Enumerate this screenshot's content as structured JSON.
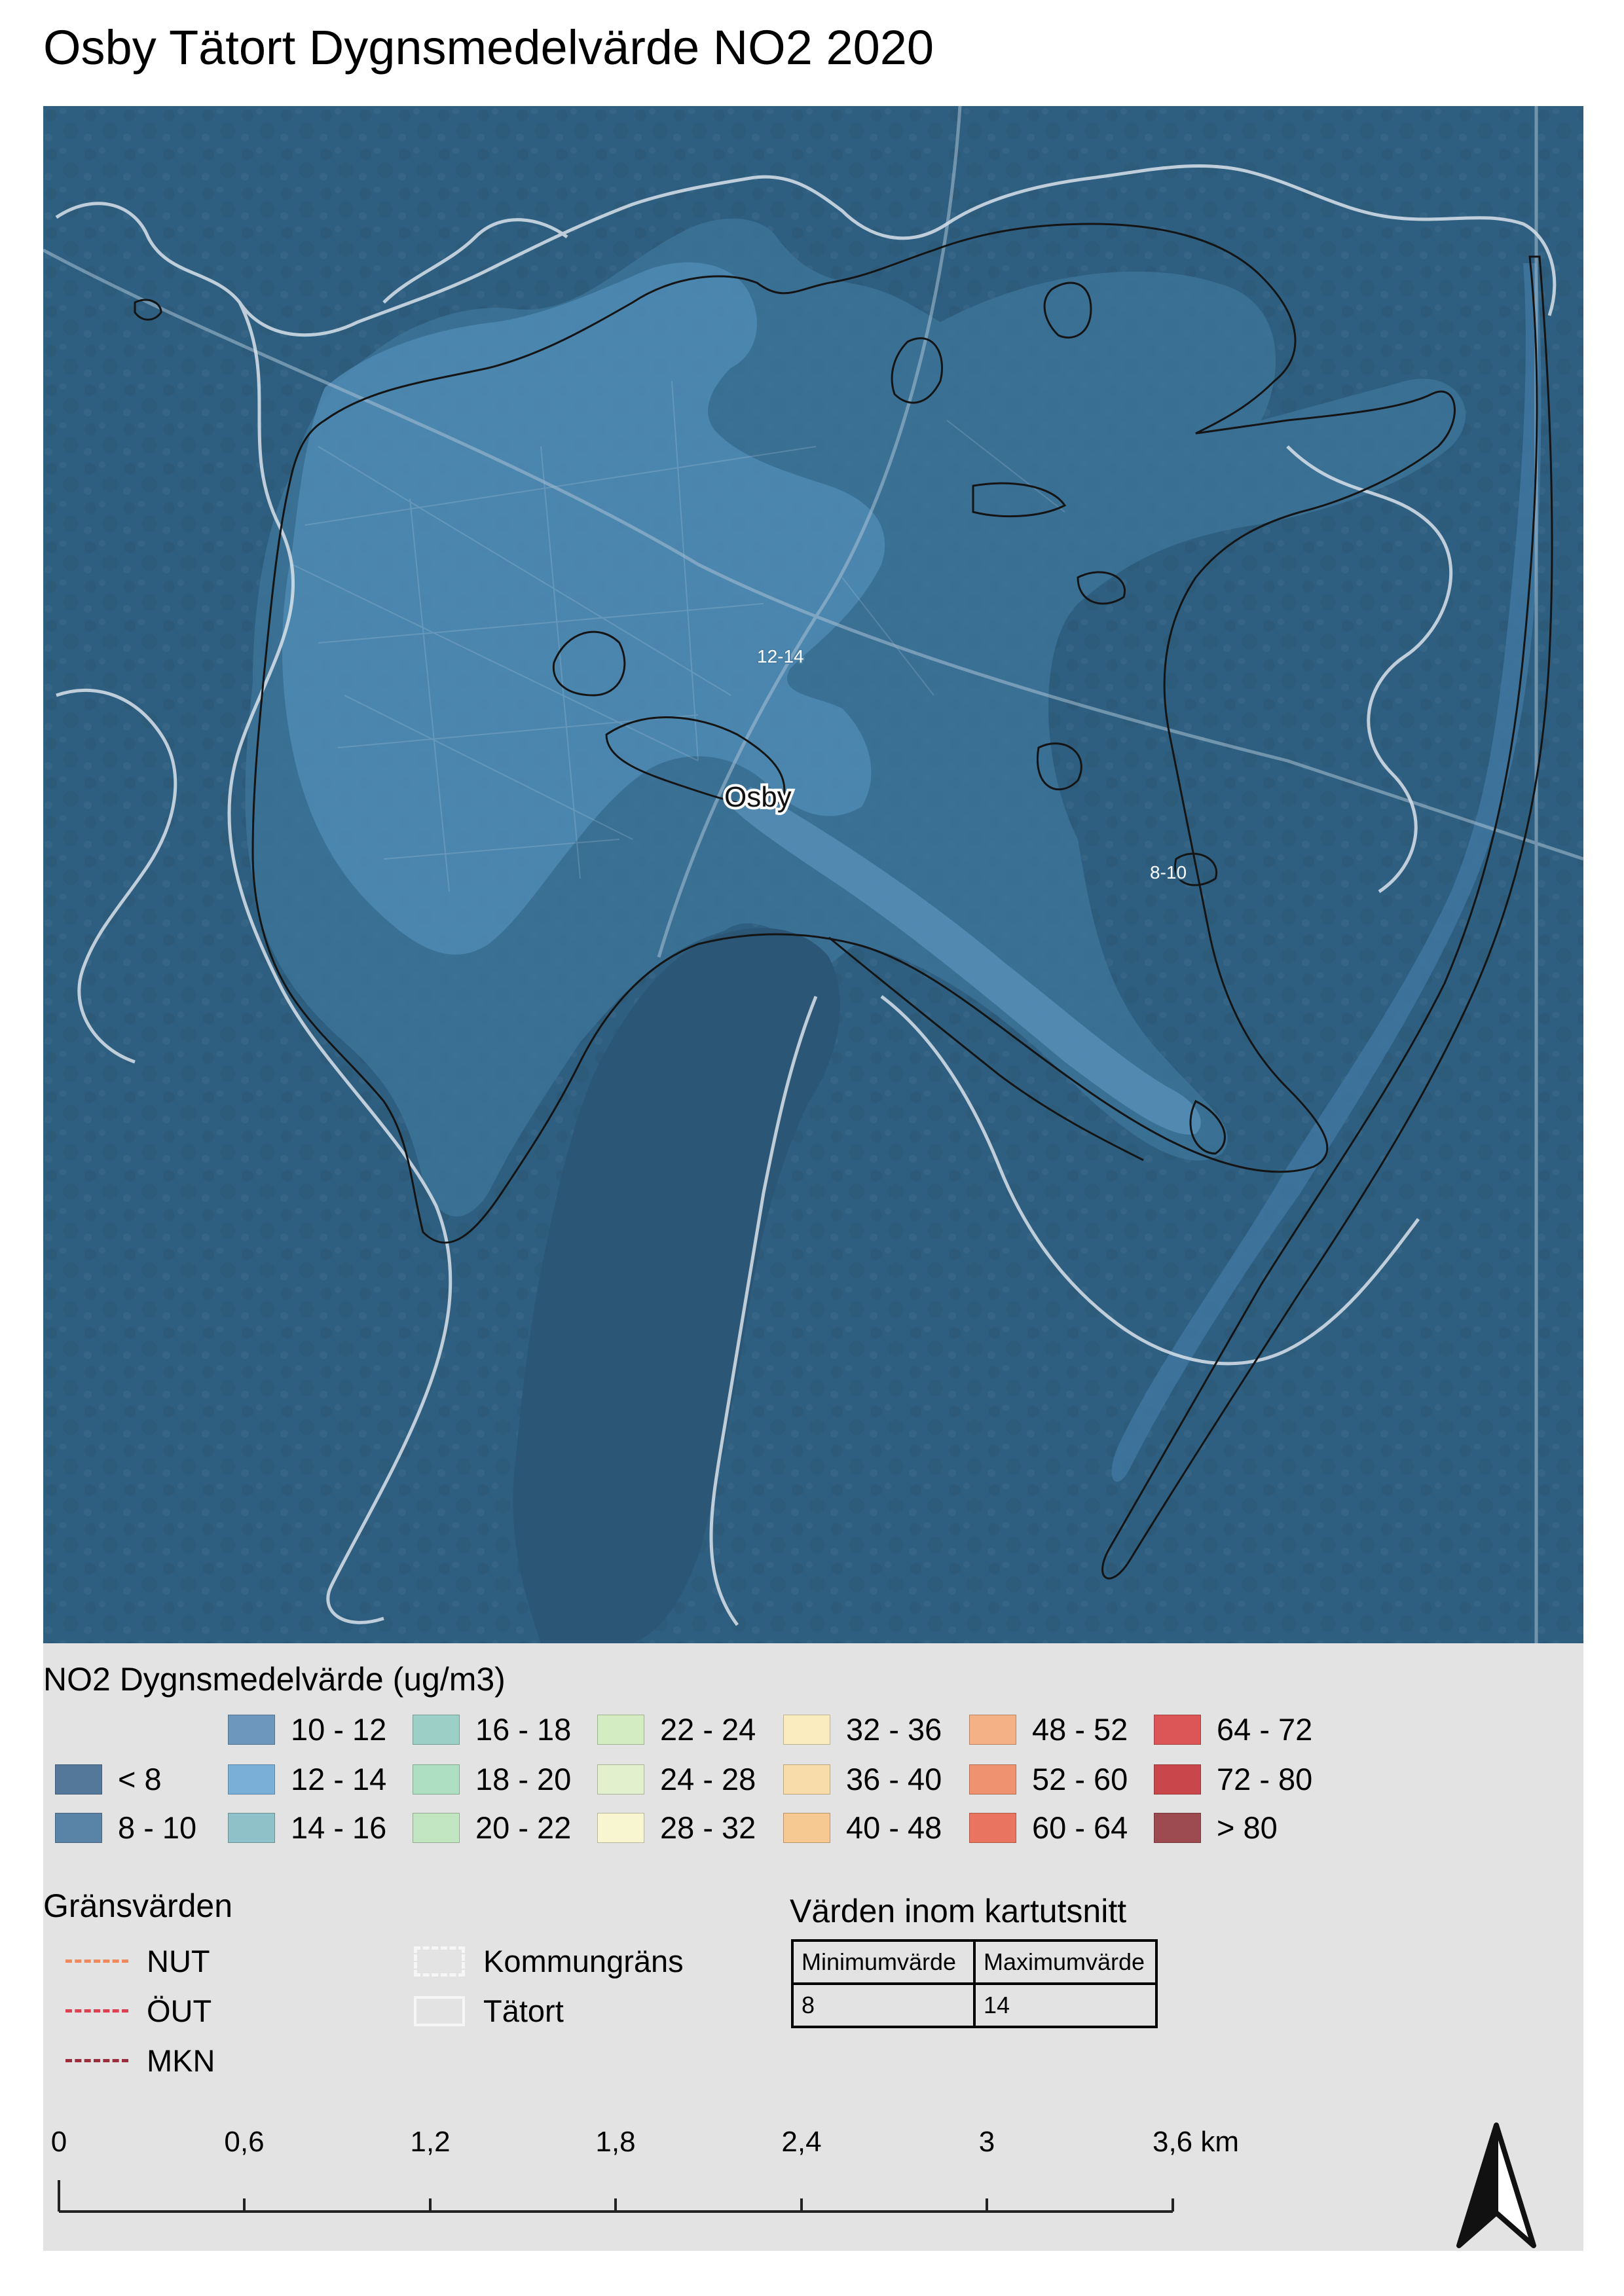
{
  "title": "Osby Tätort Dygnsmedelvärde NO2 2020",
  "map": {
    "labels": {
      "town": "Osby",
      "zone_a": "12-14",
      "zone_b": "8-10"
    },
    "colors": {
      "background": "#2f5f80",
      "band_8_10": "#3a6d92",
      "band_12_14": "#6a9dc6",
      "lake": "#2c5877",
      "tatort_outline": "#d8e2ea",
      "zone_outline": "#141414"
    }
  },
  "legend": {
    "title": "NO2 Dygnsmedelvärde (ug/m3)",
    "classes": [
      {
        "label": "< 8",
        "color": "#54789a"
      },
      {
        "label": "8 - 10",
        "color": "#5a83a8"
      },
      {
        "label": "10 - 12",
        "color": "#6e97bd"
      },
      {
        "label": "12 - 14",
        "color": "#7ab0d8"
      },
      {
        "label": "14 - 16",
        "color": "#8ec1c8"
      },
      {
        "label": "16 - 18",
        "color": "#9cd0c6"
      },
      {
        "label": "18 - 20",
        "color": "#afdfc2"
      },
      {
        "label": "20 - 22",
        "color": "#c3e6c2"
      },
      {
        "label": "22 - 24",
        "color": "#d3ecc2"
      },
      {
        "label": "24 - 28",
        "color": "#e3f0cd"
      },
      {
        "label": "28 - 32",
        "color": "#f7f6d0"
      },
      {
        "label": "32 - 36",
        "color": "#fbecc0"
      },
      {
        "label": "36 - 40",
        "color": "#f8dcaa"
      },
      {
        "label": "40 - 48",
        "color": "#f6c892"
      },
      {
        "label": "48 - 52",
        "color": "#f3b185"
      },
      {
        "label": "52 - 60",
        "color": "#ee9270"
      },
      {
        "label": "60 - 64",
        "color": "#e9745f"
      },
      {
        "label": "64 - 72",
        "color": "#dc5657"
      },
      {
        "label": "72 - 80",
        "color": "#c9464b"
      },
      {
        "label": "> 80",
        "color": "#9d4a51"
      }
    ],
    "limits": {
      "title": "Gränsvärden",
      "items": [
        {
          "label": "NUT",
          "color": "#ef8a5f"
        },
        {
          "label": "ÖUT",
          "color": "#dd4050"
        },
        {
          "label": "MKN",
          "color": "#9a2e3c"
        }
      ]
    },
    "boundaries": {
      "kommun": "Kommungräns",
      "tatort": "Tätort"
    },
    "values": {
      "title": "Värden inom kartutsnitt",
      "min_header": "Minimumvärde",
      "max_header": "Maximumvärde",
      "min_value": "8",
      "max_value": "14"
    },
    "scale": {
      "ticks": [
        "0",
        "0,6",
        "1,2",
        "1,8",
        "2,4",
        "3",
        "3,6 km"
      ]
    }
  }
}
